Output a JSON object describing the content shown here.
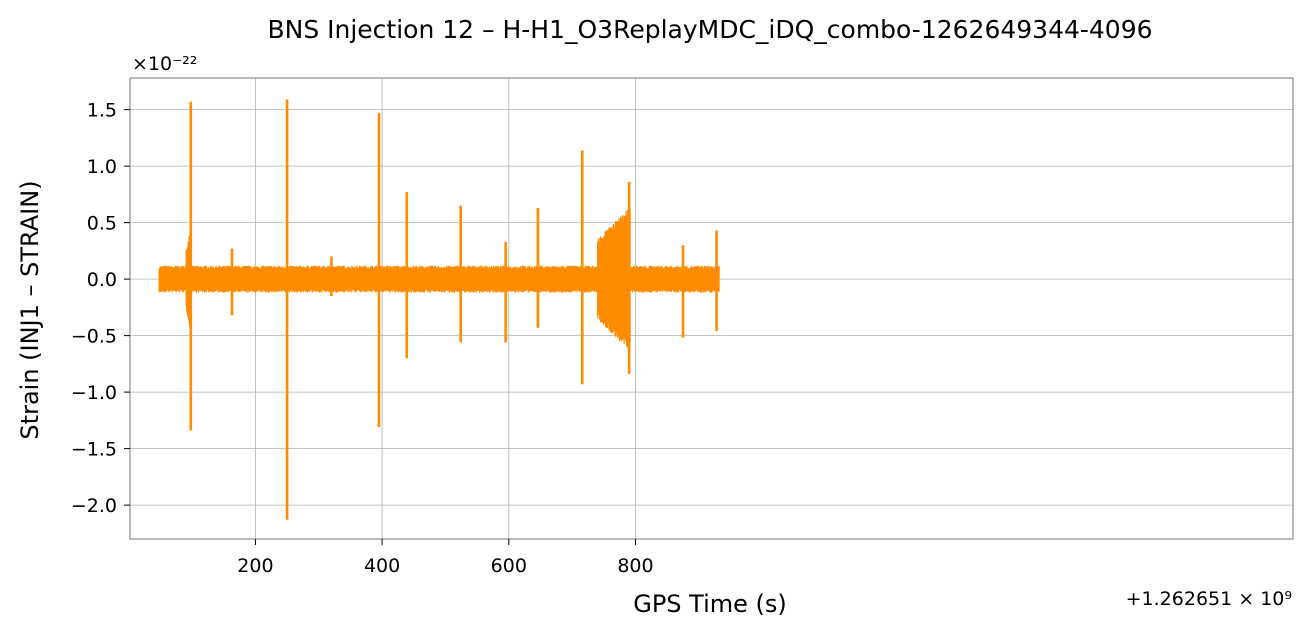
{
  "chart_data": {
    "type": "line",
    "title": "BNS Injection 12 – H-H1_O3ReplayMDC_iDQ_combo-1262649344-4096",
    "xlabel": "GPS Time (s)",
    "ylabel": "Strain (INJ1 – STRAIN)",
    "x_offset_label": "+1.262651 × 10⁹",
    "y_scale_label": "×10⁻²²",
    "xlim": [
      2,
      1838
    ],
    "ylim": [
      -2.3,
      1.78
    ],
    "x_ticks": [
      200,
      400,
      600,
      800
    ],
    "x_tick_labels": [
      "200",
      "400",
      "600",
      "800"
    ],
    "y_ticks": [
      1.5,
      1.0,
      0.5,
      0.0,
      -0.5,
      -1.0,
      -1.5,
      -2.0
    ],
    "y_tick_labels": [
      "1.5",
      "1.0",
      "0.5",
      "0.0",
      "−0.5",
      "−1.0",
      "−1.5",
      "−2.0"
    ],
    "grid": true,
    "line_color": "#ff8c00",
    "series": [
      {
        "x_range": [
          48,
          932
        ],
        "baseline_noise_upper": 0.12,
        "baseline_noise_lower": -0.12,
        "peaks": [
          {
            "x": 98,
            "max": 1.57,
            "min": -1.34
          },
          {
            "x": 163,
            "max": 0.27,
            "min": -0.32
          },
          {
            "x": 250,
            "max": 1.59,
            "min": -2.13
          },
          {
            "x": 320,
            "max": 0.2,
            "min": -0.15
          },
          {
            "x": 395,
            "max": 1.47,
            "min": -1.31
          },
          {
            "x": 439,
            "max": 0.77,
            "min": -0.7
          },
          {
            "x": 524,
            "max": 0.65,
            "min": -0.56
          },
          {
            "x": 595,
            "max": 0.33,
            "min": -0.56
          },
          {
            "x": 646,
            "max": 0.63,
            "min": -0.43
          },
          {
            "x": 716,
            "max": 1.14,
            "min": -0.93
          },
          {
            "x": 790,
            "max": 0.86,
            "min": -0.84
          },
          {
            "x": 875,
            "max": 0.3,
            "min": -0.52
          },
          {
            "x": 928,
            "max": 0.43,
            "min": -0.46
          }
        ],
        "envelopes": [
          {
            "x_start": 90,
            "x_end": 97,
            "max": 0.45,
            "min": -0.45
          },
          {
            "x_start": 740,
            "x_end": 792,
            "max": 0.65,
            "min": -0.65
          }
        ]
      }
    ]
  }
}
